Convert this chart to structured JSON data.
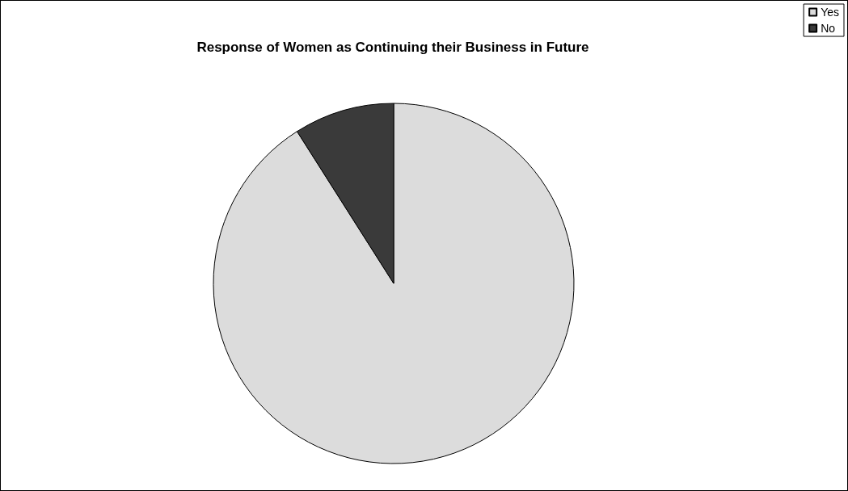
{
  "chart_data": {
    "type": "pie",
    "title": "Response of Women as Continuing their Business in Future",
    "categories": [
      "Yes",
      "No"
    ],
    "values": [
      91,
      9
    ],
    "colors": [
      "#dcdcdc",
      "#3a3a3a"
    ],
    "legend": "top right"
  }
}
